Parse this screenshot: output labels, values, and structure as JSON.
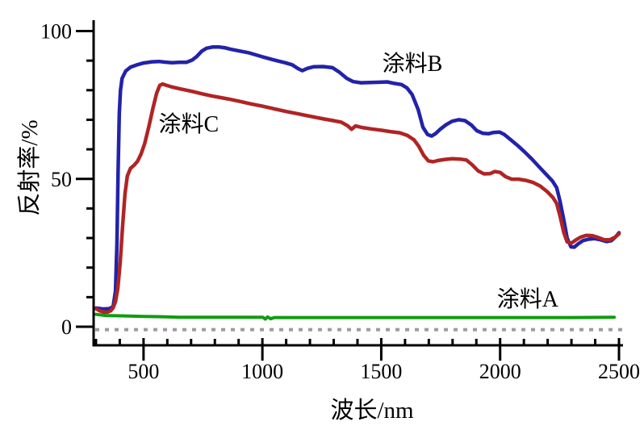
{
  "chart_data": {
    "type": "line",
    "title": "",
    "xlabel": "波长/nm",
    "ylabel": "反射率/%",
    "xlim": [
      290,
      2500
    ],
    "ylim": [
      -6,
      104
    ],
    "grid": false,
    "legend_position": "inline-annotations",
    "x_ticks_major": [
      500,
      1000,
      1500,
      2000,
      2500
    ],
    "x_tick_labels": [
      "500",
      "1000",
      "1500",
      "2000",
      "2500"
    ],
    "x_minor_step": 100,
    "y_ticks_major": [
      0,
      50,
      100
    ],
    "y_tick_labels": [
      "0",
      "50",
      "100"
    ],
    "y_minor_step": 10,
    "zero_dashed_line": {
      "y": -1,
      "color": "#9c9c9c"
    },
    "axis_color": "#000000",
    "background_color": "#ffffff",
    "series": [
      {
        "name": "涂料A",
        "color": "#109c10",
        "label_pos": {
          "x": 2116,
          "y": 9.7
        },
        "points": [
          [
            300,
            4.2
          ],
          [
            340,
            3.8
          ],
          [
            390,
            3.7
          ],
          [
            440,
            3.6
          ],
          [
            500,
            3.5
          ],
          [
            560,
            3.4
          ],
          [
            610,
            3.3
          ],
          [
            650,
            3.2
          ],
          [
            750,
            3.2
          ],
          [
            850,
            3.2
          ],
          [
            950,
            3.2
          ],
          [
            1002,
            3.2
          ],
          [
            1012,
            2.6
          ],
          [
            1022,
            3.3
          ],
          [
            1035,
            2.7
          ],
          [
            1050,
            3.1
          ],
          [
            1150,
            3.1
          ],
          [
            1300,
            3.1
          ],
          [
            1500,
            3.1
          ],
          [
            1700,
            3.1
          ],
          [
            1900,
            3.1
          ],
          [
            2100,
            3.1
          ],
          [
            2300,
            3.1
          ],
          [
            2480,
            3.2
          ]
        ]
      },
      {
        "name": "涂料B",
        "color": "#2222aa",
        "label_pos": {
          "x": 1631,
          "y": 89.5
        },
        "points": [
          [
            300,
            6.3
          ],
          [
            330,
            6.0
          ],
          [
            355,
            6.1
          ],
          [
            372,
            6.8
          ],
          [
            382,
            12
          ],
          [
            388,
            28
          ],
          [
            393,
            52
          ],
          [
            398,
            72
          ],
          [
            403,
            80
          ],
          [
            410,
            84
          ],
          [
            425,
            86.5
          ],
          [
            445,
            87.8
          ],
          [
            470,
            88.5
          ],
          [
            500,
            89.2
          ],
          [
            535,
            89.6
          ],
          [
            565,
            89.7
          ],
          [
            590,
            89.5
          ],
          [
            620,
            89.3
          ],
          [
            650,
            89.4
          ],
          [
            680,
            89.4
          ],
          [
            705,
            90.2
          ],
          [
            725,
            91.5
          ],
          [
            745,
            93.2
          ],
          [
            765,
            94.2
          ],
          [
            790,
            94.6
          ],
          [
            820,
            94.6
          ],
          [
            845,
            94.3
          ],
          [
            865,
            93.9
          ],
          [
            895,
            93.4
          ],
          [
            945,
            92.6
          ],
          [
            1000,
            91.3
          ],
          [
            1050,
            90.2
          ],
          [
            1095,
            89.3
          ],
          [
            1125,
            88.6
          ],
          [
            1150,
            87.3
          ],
          [
            1168,
            86.6
          ],
          [
            1190,
            87.4
          ],
          [
            1215,
            87.9
          ],
          [
            1255,
            88.0
          ],
          [
            1295,
            87.6
          ],
          [
            1325,
            86.0
          ],
          [
            1355,
            84.0
          ],
          [
            1382,
            82.9
          ],
          [
            1415,
            82.5
          ],
          [
            1455,
            82.6
          ],
          [
            1495,
            82.7
          ],
          [
            1525,
            82.8
          ],
          [
            1555,
            82.3
          ],
          [
            1585,
            81.9
          ],
          [
            1608,
            80.8
          ],
          [
            1630,
            78.5
          ],
          [
            1655,
            73.5
          ],
          [
            1675,
            67.5
          ],
          [
            1695,
            65.0
          ],
          [
            1712,
            64.5
          ],
          [
            1728,
            65.3
          ],
          [
            1748,
            66.8
          ],
          [
            1772,
            68.3
          ],
          [
            1798,
            69.5
          ],
          [
            1825,
            70.0
          ],
          [
            1852,
            69.7
          ],
          [
            1878,
            68.3
          ],
          [
            1902,
            66.3
          ],
          [
            1928,
            65.4
          ],
          [
            1952,
            65.3
          ],
          [
            1972,
            65.7
          ],
          [
            1998,
            65.8
          ],
          [
            2018,
            65.0
          ],
          [
            2045,
            63.2
          ],
          [
            2075,
            61.2
          ],
          [
            2105,
            59.0
          ],
          [
            2135,
            56.6
          ],
          [
            2165,
            54.0
          ],
          [
            2195,
            51.4
          ],
          [
            2220,
            49.3
          ],
          [
            2238,
            47.0
          ],
          [
            2252,
            42.5
          ],
          [
            2268,
            36.0
          ],
          [
            2282,
            30.0
          ],
          [
            2298,
            27.0
          ],
          [
            2312,
            26.9
          ],
          [
            2328,
            28.0
          ],
          [
            2348,
            29.1
          ],
          [
            2372,
            29.6
          ],
          [
            2398,
            29.8
          ],
          [
            2422,
            29.4
          ],
          [
            2448,
            28.8
          ],
          [
            2468,
            29.1
          ],
          [
            2488,
            30.6
          ],
          [
            2500,
            31.8
          ]
        ]
      },
      {
        "name": "涂料C",
        "color": "#b02424",
        "label_pos": {
          "x": 690,
          "y": 69.0
        },
        "points": [
          [
            300,
            6.1
          ],
          [
            315,
            5.4
          ],
          [
            332,
            5.0
          ],
          [
            348,
            4.9
          ],
          [
            362,
            5.4
          ],
          [
            372,
            6.4
          ],
          [
            382,
            8.5
          ],
          [
            392,
            13
          ],
          [
            402,
            22
          ],
          [
            412,
            34
          ],
          [
            422,
            45
          ],
          [
            432,
            51
          ],
          [
            445,
            53.6
          ],
          [
            460,
            54.6
          ],
          [
            475,
            56
          ],
          [
            490,
            58.5
          ],
          [
            505,
            62
          ],
          [
            522,
            67.5
          ],
          [
            540,
            74
          ],
          [
            555,
            79
          ],
          [
            568,
            81.6
          ],
          [
            580,
            82.1
          ],
          [
            595,
            81.7
          ],
          [
            615,
            81.2
          ],
          [
            645,
            80.6
          ],
          [
            675,
            80.1
          ],
          [
            705,
            79.6
          ],
          [
            745,
            78.8
          ],
          [
            785,
            78.1
          ],
          [
            825,
            77.5
          ],
          [
            865,
            76.9
          ],
          [
            905,
            76.2
          ],
          [
            950,
            75.4
          ],
          [
            1000,
            74.6
          ],
          [
            1050,
            73.7
          ],
          [
            1100,
            72.8
          ],
          [
            1150,
            72.0
          ],
          [
            1200,
            71.2
          ],
          [
            1250,
            70.4
          ],
          [
            1298,
            69.7
          ],
          [
            1332,
            69.2
          ],
          [
            1358,
            68.0
          ],
          [
            1375,
            66.8
          ],
          [
            1392,
            67.9
          ],
          [
            1418,
            67.4
          ],
          [
            1458,
            66.9
          ],
          [
            1498,
            66.5
          ],
          [
            1538,
            66.0
          ],
          [
            1578,
            65.6
          ],
          [
            1610,
            64.7
          ],
          [
            1638,
            63.2
          ],
          [
            1658,
            61.0
          ],
          [
            1678,
            58.0
          ],
          [
            1698,
            56.1
          ],
          [
            1718,
            55.8
          ],
          [
            1738,
            56.2
          ],
          [
            1768,
            56.6
          ],
          [
            1798,
            56.8
          ],
          [
            1832,
            56.7
          ],
          [
            1858,
            56.4
          ],
          [
            1882,
            54.8
          ],
          [
            1908,
            52.7
          ],
          [
            1932,
            51.7
          ],
          [
            1958,
            51.8
          ],
          [
            1978,
            52.5
          ],
          [
            2000,
            52.2
          ],
          [
            2022,
            50.8
          ],
          [
            2048,
            49.9
          ],
          [
            2078,
            49.9
          ],
          [
            2108,
            49.5
          ],
          [
            2138,
            48.8
          ],
          [
            2168,
            47.6
          ],
          [
            2198,
            45.7
          ],
          [
            2222,
            43.7
          ],
          [
            2238,
            41.7
          ],
          [
            2252,
            37.5
          ],
          [
            2268,
            31.8
          ],
          [
            2282,
            28.7
          ],
          [
            2298,
            28.2
          ],
          [
            2318,
            29.3
          ],
          [
            2338,
            30.3
          ],
          [
            2362,
            30.9
          ],
          [
            2388,
            30.8
          ],
          [
            2412,
            30.2
          ],
          [
            2438,
            29.4
          ],
          [
            2462,
            29.4
          ],
          [
            2482,
            30.2
          ],
          [
            2500,
            31.4
          ]
        ]
      }
    ]
  }
}
